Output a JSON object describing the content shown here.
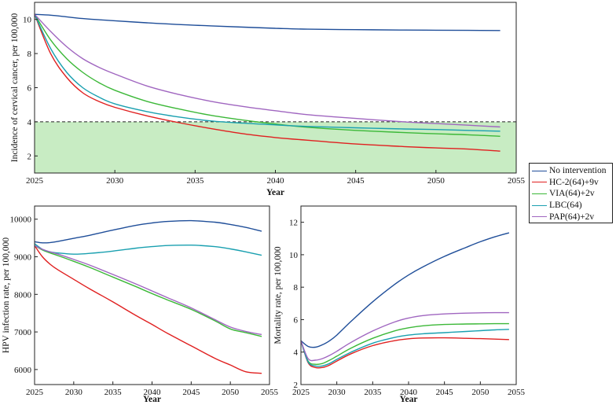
{
  "chart_data": [
    {
      "type": "line",
      "panel": "top",
      "title": "",
      "xlabel": "Year",
      "ylabel": "Incidence of cervical cancer, per 100,000",
      "xlim": [
        2025,
        2055
      ],
      "ylim": [
        1,
        11
      ],
      "xticks": [
        "2025",
        "2030",
        "2035",
        "2040",
        "2045",
        "2050",
        "2055"
      ],
      "yticks": [
        "2",
        "4",
        "6",
        "8",
        "10"
      ],
      "threshold": {
        "value": 4,
        "style": "dashed",
        "shade_below": true,
        "shade_color": "#c8ecc3"
      },
      "x": [
        2025,
        2026,
        2027,
        2028,
        2029,
        2030,
        2032,
        2034,
        2036,
        2038,
        2040,
        2042,
        2045,
        2048,
        2050,
        2052,
        2054
      ],
      "series": [
        {
          "name": "No intervention",
          "color": "#1f4e99",
          "values": [
            10.3,
            10.25,
            10.15,
            10.05,
            9.98,
            9.92,
            9.8,
            9.7,
            9.62,
            9.55,
            9.48,
            9.43,
            9.4,
            9.38,
            9.37,
            9.36,
            9.35
          ]
        },
        {
          "name": "HC-2(64)+9v",
          "color": "#e02020",
          "values": [
            10.3,
            8.0,
            6.6,
            5.7,
            5.2,
            4.85,
            4.35,
            3.95,
            3.6,
            3.3,
            3.08,
            2.92,
            2.7,
            2.55,
            2.47,
            2.4,
            2.28
          ]
        },
        {
          "name": "VIA(64)+2v",
          "color": "#3cb838",
          "values": [
            10.3,
            8.8,
            7.7,
            6.9,
            6.3,
            5.85,
            5.2,
            4.75,
            4.38,
            4.1,
            3.87,
            3.68,
            3.5,
            3.37,
            3.3,
            3.24,
            3.15
          ]
        },
        {
          "name": "LBC(64)",
          "color": "#1aa0b0",
          "values": [
            10.3,
            8.3,
            6.9,
            6.0,
            5.45,
            5.05,
            4.6,
            4.28,
            4.05,
            3.92,
            3.82,
            3.73,
            3.65,
            3.58,
            3.55,
            3.5,
            3.45
          ]
        },
        {
          "name": "PAP(64)+2v",
          "color": "#a066c0",
          "values": [
            10.3,
            9.3,
            8.4,
            7.7,
            7.2,
            6.8,
            6.1,
            5.6,
            5.2,
            4.9,
            4.65,
            4.42,
            4.2,
            4.0,
            3.9,
            3.8,
            3.7
          ]
        }
      ]
    },
    {
      "type": "line",
      "panel": "bottom-left",
      "title": "",
      "xlabel": "Year",
      "ylabel": "HPV infection rate, per 100,000",
      "xlim": [
        2025,
        2055
      ],
      "ylim": [
        5600,
        10350
      ],
      "xticks": [
        "2025",
        "2030",
        "2035",
        "2040",
        "2045",
        "2050",
        "2055"
      ],
      "yticks": [
        "6000",
        "7000",
        "8000",
        "9000",
        "10000"
      ],
      "x": [
        2025,
        2026,
        2027,
        2028,
        2030,
        2032,
        2035,
        2038,
        2040,
        2042,
        2045,
        2048,
        2050,
        2052,
        2054
      ],
      "series": [
        {
          "name": "No intervention",
          "color": "#1f4e99",
          "values": [
            9400,
            9370,
            9380,
            9410,
            9490,
            9570,
            9710,
            9840,
            9900,
            9940,
            9960,
            9920,
            9860,
            9780,
            9680
          ]
        },
        {
          "name": "HC-2(64)+9v",
          "color": "#e02020",
          "values": [
            9300,
            9000,
            8800,
            8650,
            8400,
            8150,
            7800,
            7430,
            7200,
            6960,
            6630,
            6300,
            6120,
            5940,
            5900
          ]
        },
        {
          "name": "VIA(64)+2v",
          "color": "#3cb838",
          "values": [
            9300,
            9180,
            9100,
            9030,
            8880,
            8720,
            8460,
            8200,
            8020,
            7850,
            7600,
            7300,
            7080,
            6980,
            6880
          ]
        },
        {
          "name": "LBC(64)",
          "color": "#1aa0b0",
          "values": [
            9350,
            9200,
            9130,
            9100,
            9070,
            9090,
            9150,
            9230,
            9270,
            9300,
            9310,
            9270,
            9210,
            9130,
            9040
          ]
        },
        {
          "name": "PAP(64)+2v",
          "color": "#a066c0",
          "values": [
            9300,
            9200,
            9130,
            9070,
            8930,
            8780,
            8530,
            8270,
            8090,
            7910,
            7640,
            7330,
            7130,
            7010,
            6930
          ]
        }
      ]
    },
    {
      "type": "line",
      "panel": "bottom-right",
      "title": "",
      "xlabel": "Year",
      "ylabel": "Mortality rate, per 100,000",
      "xlim": [
        2025,
        2055
      ],
      "ylim": [
        2,
        13
      ],
      "xticks": [
        "2025",
        "2030",
        "2035",
        "2040",
        "2045",
        "2050",
        "2055"
      ],
      "yticks": [
        "2",
        "4",
        "6",
        "8",
        "10",
        "12"
      ],
      "x": [
        2025,
        2026,
        2027,
        2028,
        2029,
        2030,
        2032,
        2035,
        2038,
        2040,
        2042,
        2045,
        2048,
        2050,
        2052,
        2054
      ],
      "series": [
        {
          "name": "No intervention",
          "color": "#1f4e99",
          "values": [
            4.7,
            4.35,
            4.3,
            4.45,
            4.7,
            5.05,
            5.9,
            7.1,
            8.15,
            8.75,
            9.25,
            9.9,
            10.45,
            10.8,
            11.1,
            11.35
          ]
        },
        {
          "name": "HC-2(64)+9v",
          "color": "#e02020",
          "values": [
            4.7,
            3.35,
            3.05,
            3.05,
            3.2,
            3.45,
            3.9,
            4.4,
            4.7,
            4.82,
            4.87,
            4.88,
            4.85,
            4.83,
            4.8,
            4.77
          ]
        },
        {
          "name": "VIA(64)+2v",
          "color": "#3cb838",
          "values": [
            4.7,
            3.45,
            3.25,
            3.3,
            3.5,
            3.75,
            4.25,
            4.85,
            5.3,
            5.5,
            5.62,
            5.7,
            5.73,
            5.74,
            5.75,
            5.75
          ]
        },
        {
          "name": "LBC(64)",
          "color": "#1aa0b0",
          "values": [
            4.7,
            3.4,
            3.15,
            3.15,
            3.3,
            3.55,
            4.0,
            4.55,
            4.9,
            5.05,
            5.13,
            5.2,
            5.27,
            5.32,
            5.37,
            5.4
          ]
        },
        {
          "name": "PAP(64)+2v",
          "color": "#a066c0",
          "values": [
            4.7,
            3.6,
            3.5,
            3.6,
            3.8,
            4.05,
            4.6,
            5.3,
            5.85,
            6.1,
            6.25,
            6.35,
            6.4,
            6.42,
            6.43,
            6.43
          ]
        }
      ]
    }
  ],
  "legend": {
    "items": [
      {
        "label": "No intervention",
        "color": "#1f4e99"
      },
      {
        "label": "HC-2(64)+9v",
        "color": "#e02020"
      },
      {
        "label": "VIA(64)+2v",
        "color": "#3cb838"
      },
      {
        "label": "LBC(64)",
        "color": "#1aa0b0"
      },
      {
        "label": "PAP(64)+2v",
        "color": "#a066c0"
      }
    ]
  }
}
